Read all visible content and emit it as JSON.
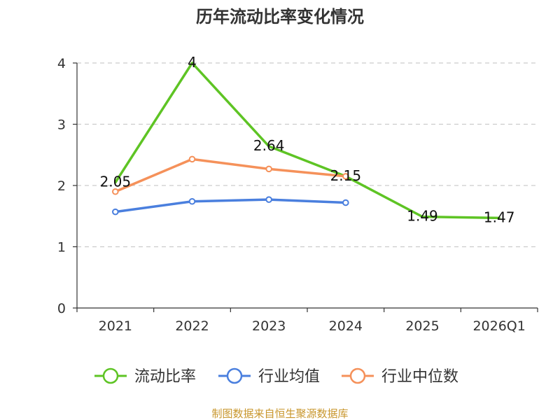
{
  "chart_data": {
    "type": "line",
    "title": "历年流动比率变化情况",
    "categories": [
      "2021",
      "2022",
      "2023",
      "2024",
      "2025",
      "2026Q1"
    ],
    "ylim": [
      0,
      4
    ],
    "yticks": [
      "0",
      "1",
      "2",
      "3",
      "4"
    ],
    "ytick_values": [
      0,
      1,
      2,
      3,
      4
    ],
    "grid": true,
    "legend_position": "bottom",
    "series": [
      {
        "name": "流动比率",
        "color": "#5ec424",
        "values": [
          2.05,
          4,
          2.64,
          2.15,
          1.49,
          1.47
        ],
        "labels": [
          "2.05",
          "4",
          "2.64",
          "2.15",
          "1.49",
          "1.47"
        ],
        "markers": false
      },
      {
        "name": "行业均值",
        "color": "#4a7fde",
        "values": [
          1.57,
          1.74,
          1.77,
          1.72,
          null,
          null
        ],
        "markers": true
      },
      {
        "name": "行业中位数",
        "color": "#f5915a",
        "values": [
          1.9,
          2.43,
          2.27,
          2.15,
          null,
          null
        ],
        "markers": true
      }
    ],
    "source": "制图数据来自恒生聚源数据库",
    "source_color": "#c8962c"
  }
}
